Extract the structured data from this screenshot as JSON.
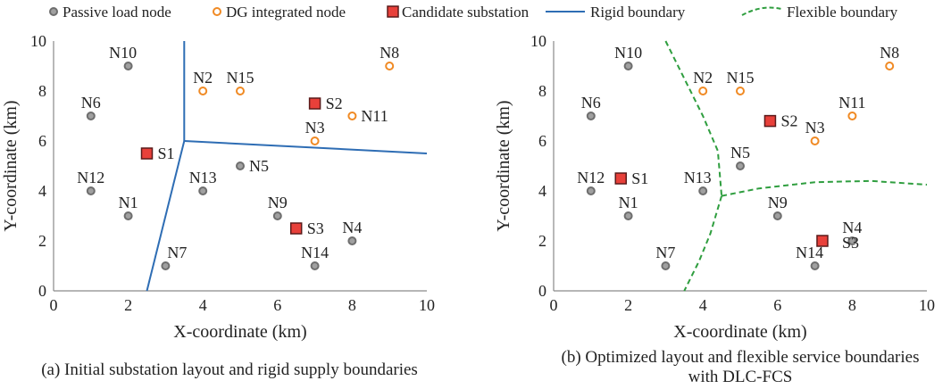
{
  "legend": {
    "items": [
      {
        "key": "passive",
        "label": "Passive load node",
        "marker": "circle",
        "fill": "#a0a0a0",
        "stroke": "#6e6e6e"
      },
      {
        "key": "dg",
        "label": "DG integrated node",
        "marker": "circle",
        "fill": "#ffffff",
        "stroke": "#f08a24"
      },
      {
        "key": "cand",
        "label": "Candidate substation",
        "marker": "square",
        "fill": "#e8403a",
        "stroke": "#5a1a1a"
      },
      {
        "key": "rigid",
        "label": "Rigid boundary",
        "marker": "line",
        "stroke": "#2e6db4"
      },
      {
        "key": "flex",
        "label": "Flexible boundary",
        "marker": "dashed-curve",
        "stroke": "#2f9e3f"
      }
    ]
  },
  "chart_data": [
    {
      "type": "scatter",
      "caption": "(a) Initial substation layout and rigid supply boundaries",
      "xlabel": "X-coordinate (km)",
      "ylabel": "Y-coordinate (km)",
      "xlim": [
        0,
        10
      ],
      "ylim": [
        0,
        10
      ],
      "xticks": [
        0,
        2,
        4,
        6,
        8,
        10
      ],
      "yticks": [
        0,
        2,
        4,
        6,
        8,
        10
      ],
      "points": [
        {
          "label": "N10",
          "x": 2,
          "y": 9,
          "kind": "passive",
          "lab": "tl"
        },
        {
          "label": "N6",
          "x": 1,
          "y": 7,
          "kind": "passive",
          "lab": "t"
        },
        {
          "label": "N12",
          "x": 1,
          "y": 4,
          "kind": "passive",
          "lab": "t"
        },
        {
          "label": "N1",
          "x": 2,
          "y": 3,
          "kind": "passive",
          "lab": "t"
        },
        {
          "label": "N7",
          "x": 3,
          "y": 1,
          "kind": "passive",
          "lab": "tr"
        },
        {
          "label": "N13",
          "x": 4,
          "y": 4,
          "kind": "passive",
          "lab": "t"
        },
        {
          "label": "N5",
          "x": 5,
          "y": 5,
          "kind": "passive",
          "lab": "r"
        },
        {
          "label": "N9",
          "x": 6,
          "y": 3,
          "kind": "passive",
          "lab": "t"
        },
        {
          "label": "N4",
          "x": 8,
          "y": 2,
          "kind": "passive",
          "lab": "t"
        },
        {
          "label": "N14",
          "x": 7,
          "y": 1,
          "kind": "passive",
          "lab": "t"
        },
        {
          "label": "N2",
          "x": 4,
          "y": 8,
          "kind": "dg",
          "lab": "t"
        },
        {
          "label": "N15",
          "x": 5,
          "y": 8,
          "kind": "dg",
          "lab": "t"
        },
        {
          "label": "N8",
          "x": 9,
          "y": 9,
          "kind": "dg",
          "lab": "t"
        },
        {
          "label": "N11",
          "x": 8,
          "y": 7,
          "kind": "dg",
          "lab": "r"
        },
        {
          "label": "N3",
          "x": 7,
          "y": 6,
          "kind": "dg",
          "lab": "t"
        },
        {
          "label": "S1",
          "x": 2.5,
          "y": 5.5,
          "kind": "cand",
          "lab": "r"
        },
        {
          "label": "S2",
          "x": 7,
          "y": 7.5,
          "kind": "cand",
          "lab": "r"
        },
        {
          "label": "S3",
          "x": 6.5,
          "y": 2.5,
          "kind": "cand",
          "lab": "r"
        }
      ],
      "boundaries": [
        {
          "kind": "rigid",
          "points": [
            [
              3.5,
              10
            ],
            [
              3.5,
              6
            ]
          ]
        },
        {
          "kind": "rigid",
          "points": [
            [
              3.5,
              6
            ],
            [
              2.5,
              0
            ]
          ]
        },
        {
          "kind": "rigid",
          "points": [
            [
              3.5,
              6
            ],
            [
              10,
              5.5
            ]
          ]
        }
      ]
    },
    {
      "type": "scatter",
      "caption": "(b) Optimized layout and flexible service boundaries\nwith DLC-FCS",
      "xlabel": "X-coordinate (km)",
      "ylabel": "Y-coordinate (km)",
      "xlim": [
        0,
        10
      ],
      "ylim": [
        0,
        10
      ],
      "xticks": [
        0,
        2,
        4,
        6,
        8,
        10
      ],
      "yticks": [
        0,
        2,
        4,
        6,
        8,
        10
      ],
      "points": [
        {
          "label": "N10",
          "x": 2,
          "y": 9,
          "kind": "passive",
          "lab": "t"
        },
        {
          "label": "N6",
          "x": 1,
          "y": 7,
          "kind": "passive",
          "lab": "t"
        },
        {
          "label": "N12",
          "x": 1,
          "y": 4,
          "kind": "passive",
          "lab": "t"
        },
        {
          "label": "N1",
          "x": 2,
          "y": 3,
          "kind": "passive",
          "lab": "t"
        },
        {
          "label": "N7",
          "x": 3,
          "y": 1,
          "kind": "passive",
          "lab": "t"
        },
        {
          "label": "N13",
          "x": 4,
          "y": 4,
          "kind": "passive",
          "lab": "tl"
        },
        {
          "label": "N5",
          "x": 5,
          "y": 5,
          "kind": "passive",
          "lab": "t"
        },
        {
          "label": "N9",
          "x": 6,
          "y": 3,
          "kind": "passive",
          "lab": "t"
        },
        {
          "label": "N4",
          "x": 8,
          "y": 2,
          "kind": "passive",
          "lab": "t"
        },
        {
          "label": "N14",
          "x": 7,
          "y": 1,
          "kind": "passive",
          "lab": "tl"
        },
        {
          "label": "N2",
          "x": 4,
          "y": 8,
          "kind": "dg",
          "lab": "t"
        },
        {
          "label": "N15",
          "x": 5,
          "y": 8,
          "kind": "dg",
          "lab": "t"
        },
        {
          "label": "N8",
          "x": 9,
          "y": 9,
          "kind": "dg",
          "lab": "t"
        },
        {
          "label": "N11",
          "x": 8,
          "y": 7,
          "kind": "dg",
          "lab": "t"
        },
        {
          "label": "N3",
          "x": 7,
          "y": 6,
          "kind": "dg",
          "lab": "t"
        },
        {
          "label": "S1",
          "x": 1.8,
          "y": 4.5,
          "kind": "cand",
          "lab": "r"
        },
        {
          "label": "S2",
          "x": 5.8,
          "y": 6.8,
          "kind": "cand",
          "lab": "r"
        },
        {
          "label": "S3",
          "x": 7.2,
          "y": 2,
          "kind": "cand",
          "lab": "br"
        }
      ],
      "boundaries": [
        {
          "kind": "flex",
          "points": [
            [
              3,
              10
            ],
            [
              3.5,
              8.5
            ],
            [
              4,
              7
            ],
            [
              4.4,
              5.6
            ],
            [
              4.5,
              3.8
            ]
          ]
        },
        {
          "kind": "flex",
          "points": [
            [
              4.5,
              3.8
            ],
            [
              4.2,
              2.3
            ],
            [
              3.9,
              1.2
            ],
            [
              3.5,
              0
            ]
          ]
        },
        {
          "kind": "flex",
          "points": [
            [
              4.5,
              3.8
            ],
            [
              5.5,
              4.1
            ],
            [
              7,
              4.35
            ],
            [
              8.5,
              4.4
            ],
            [
              10,
              4.25
            ]
          ]
        }
      ]
    }
  ]
}
